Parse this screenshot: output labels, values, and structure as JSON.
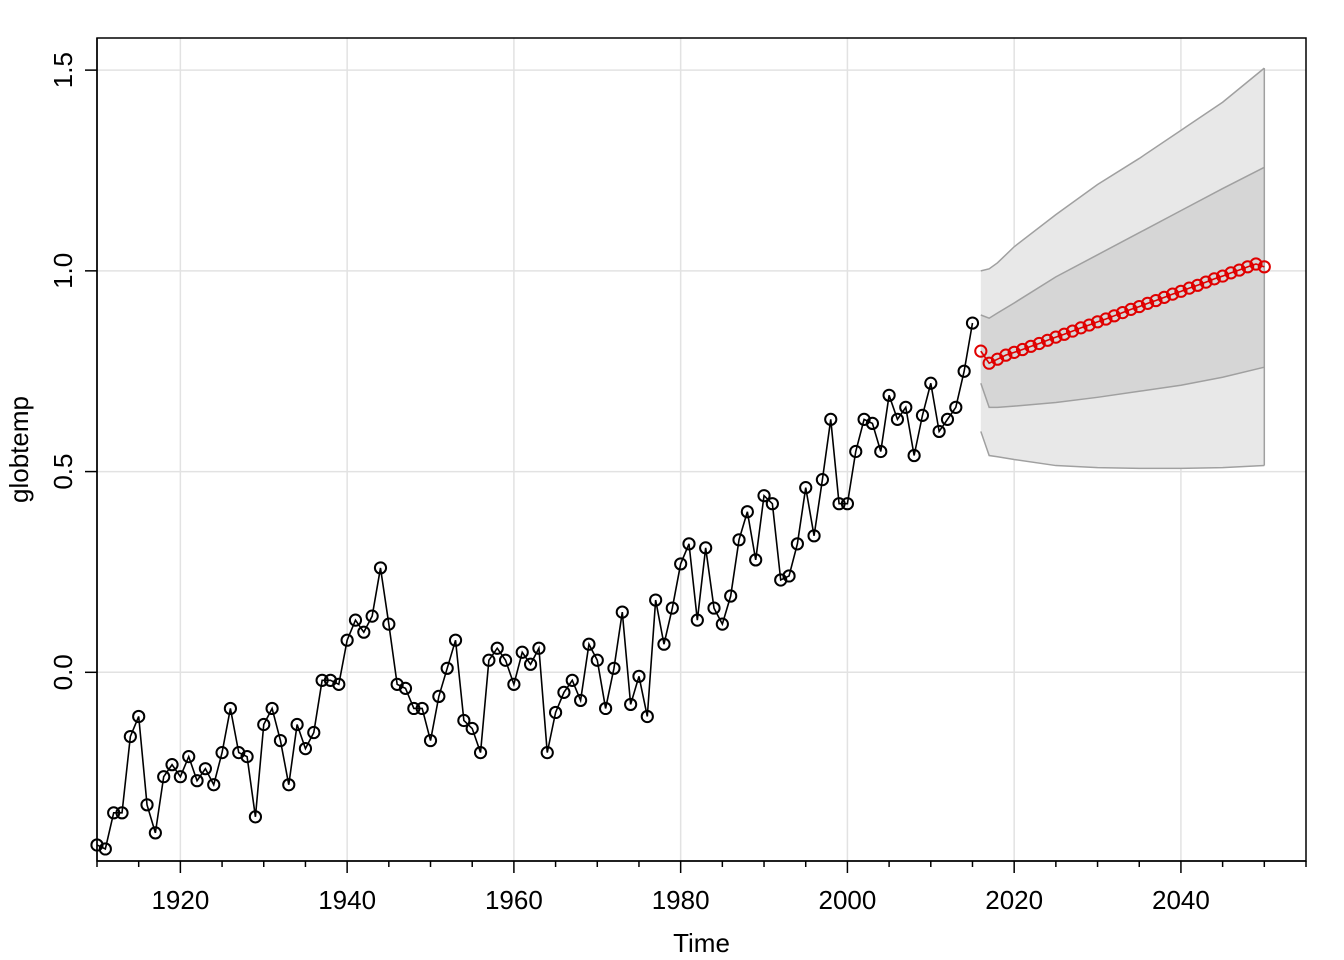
{
  "chart_data": {
    "type": "line",
    "title": "",
    "xlabel": "Time",
    "ylabel": "globtemp",
    "xlim": [
      1910,
      2055
    ],
    "ylim": [
      -0.47,
      1.58
    ],
    "grid": true,
    "x_ticks": [
      1920,
      1940,
      1960,
      1980,
      2000,
      2020,
      2040
    ],
    "x_tick_labels": [
      "1920",
      "1940",
      "1960",
      "1980",
      "2000",
      "2020",
      "2040"
    ],
    "y_ticks": [
      0.0,
      0.5,
      1.0,
      1.5
    ],
    "y_tick_labels": [
      "0.0",
      "0.5",
      "1.0",
      "1.5"
    ],
    "colors": {
      "observed": "#000000",
      "forecast": "#e00000",
      "band_95": "#e8e8e8",
      "band_80": "#d6d6d6",
      "band_edge": "#a0a0a0",
      "grid": "#e2e2e2"
    },
    "series": [
      {
        "role": "observed",
        "x": [
          1910,
          1911,
          1912,
          1913,
          1914,
          1915,
          1916,
          1917,
          1918,
          1919,
          1920,
          1921,
          1922,
          1923,
          1924,
          1925,
          1926,
          1927,
          1928,
          1929,
          1930,
          1931,
          1932,
          1933,
          1934,
          1935,
          1936,
          1937,
          1938,
          1939,
          1940,
          1941,
          1942,
          1943,
          1944,
          1945,
          1946,
          1947,
          1948,
          1949,
          1950,
          1951,
          1952,
          1953,
          1954,
          1955,
          1956,
          1957,
          1958,
          1959,
          1960,
          1961,
          1962,
          1963,
          1964,
          1965,
          1966,
          1967,
          1968,
          1969,
          1970,
          1971,
          1972,
          1973,
          1974,
          1975,
          1976,
          1977,
          1978,
          1979,
          1980,
          1981,
          1982,
          1983,
          1984,
          1985,
          1986,
          1987,
          1988,
          1989,
          1990,
          1991,
          1992,
          1993,
          1994,
          1995,
          1996,
          1997,
          1998,
          1999,
          2000,
          2001,
          2002,
          2003,
          2004,
          2005,
          2006,
          2007,
          2008,
          2009,
          2010,
          2011,
          2012,
          2013,
          2014,
          2015
        ],
        "values": [
          -0.43,
          -0.44,
          -0.35,
          -0.35,
          -0.16,
          -0.11,
          -0.33,
          -0.4,
          -0.26,
          -0.23,
          -0.26,
          -0.21,
          -0.27,
          -0.24,
          -0.28,
          -0.2,
          -0.09,
          -0.2,
          -0.21,
          -0.36,
          -0.13,
          -0.09,
          -0.17,
          -0.28,
          -0.13,
          -0.19,
          -0.15,
          -0.02,
          -0.02,
          -0.03,
          0.08,
          0.13,
          0.1,
          0.14,
          0.26,
          0.12,
          -0.03,
          -0.04,
          -0.09,
          -0.09,
          -0.17,
          -0.06,
          0.01,
          0.08,
          -0.12,
          -0.14,
          -0.2,
          0.03,
          0.06,
          0.03,
          -0.03,
          0.05,
          0.02,
          0.06,
          -0.2,
          -0.1,
          -0.05,
          -0.02,
          -0.07,
          0.07,
          0.03,
          -0.09,
          0.01,
          0.15,
          -0.08,
          -0.01,
          -0.11,
          0.18,
          0.07,
          0.16,
          0.27,
          0.32,
          0.13,
          0.31,
          0.16,
          0.12,
          0.19,
          0.33,
          0.4,
          0.28,
          0.44,
          0.42,
          0.23,
          0.24,
          0.32,
          0.46,
          0.34,
          0.48,
          0.63,
          0.42,
          0.42,
          0.55,
          0.63,
          0.62,
          0.55,
          0.69,
          0.63,
          0.66,
          0.54,
          0.64,
          0.72,
          0.6,
          0.63,
          0.66,
          0.75,
          0.87
        ]
      },
      {
        "role": "forecast",
        "x": [
          2016,
          2017,
          2018,
          2019,
          2020,
          2021,
          2022,
          2023,
          2024,
          2025,
          2026,
          2027,
          2028,
          2029,
          2030,
          2031,
          2032,
          2033,
          2034,
          2035,
          2036,
          2037,
          2038,
          2039,
          2040,
          2041,
          2042,
          2043,
          2044,
          2045,
          2046,
          2047,
          2048,
          2049,
          2050
        ],
        "values": [
          0.8,
          0.77,
          0.78,
          0.79,
          0.797,
          0.804,
          0.812,
          0.819,
          0.827,
          0.835,
          0.842,
          0.85,
          0.858,
          0.865,
          0.873,
          0.88,
          0.888,
          0.896,
          0.904,
          0.911,
          0.919,
          0.926,
          0.934,
          0.942,
          0.949,
          0.957,
          0.964,
          0.972,
          0.98,
          0.987,
          0.995,
          1.002,
          1.01,
          1.017,
          1.01
        ]
      }
    ],
    "bands": [
      {
        "role": "95% interval",
        "x": [
          2016,
          2017,
          2018,
          2020,
          2025,
          2030,
          2035,
          2040,
          2045,
          2050
        ],
        "lower": [
          0.6,
          0.54,
          0.537,
          0.53,
          0.515,
          0.51,
          0.508,
          0.508,
          0.51,
          0.515
        ],
        "upper": [
          1.0,
          1.005,
          1.02,
          1.06,
          1.14,
          1.215,
          1.28,
          1.35,
          1.42,
          1.505
        ]
      },
      {
        "role": "80% interval",
        "x": [
          2016,
          2017,
          2018,
          2020,
          2025,
          2030,
          2035,
          2040,
          2045,
          2050
        ],
        "lower": [
          0.72,
          0.66,
          0.66,
          0.663,
          0.672,
          0.685,
          0.7,
          0.715,
          0.735,
          0.76
        ],
        "upper": [
          0.89,
          0.882,
          0.895,
          0.92,
          0.985,
          1.04,
          1.095,
          1.15,
          1.205,
          1.258
        ]
      }
    ]
  }
}
